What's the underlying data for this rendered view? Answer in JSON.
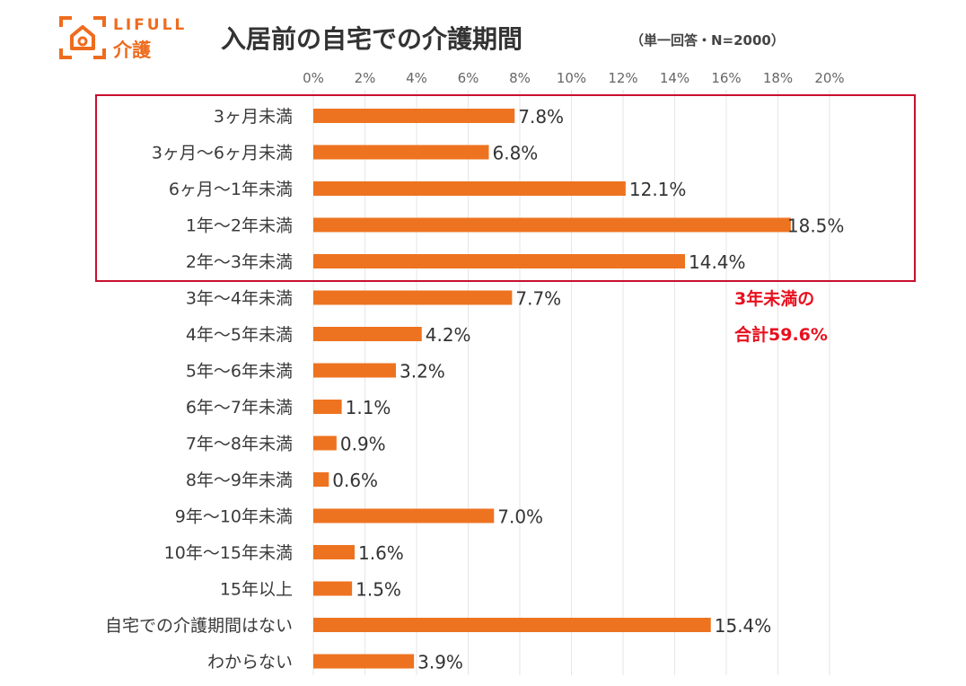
{
  "logo": {
    "top": "LIFULL",
    "bottom": "介護"
  },
  "title": "入居前の自宅での介護期間",
  "note": "（単一回答・N=2000）",
  "annotation": {
    "line1": "3年未満の",
    "line2": "合計59.6%"
  },
  "colors": {
    "bar": "#ee7320",
    "highlight_box": "#c8102e",
    "annotation": "#e8101e",
    "grid": "#e6e6e6"
  },
  "chart_data": {
    "type": "bar",
    "orientation": "horizontal",
    "title": "入居前の自宅での介護期間",
    "subtitle": "（単一回答・N=2000）",
    "xlim": [
      0,
      20
    ],
    "x_ticks": [
      "0%",
      "2%",
      "4%",
      "6%",
      "8%",
      "10%",
      "12%",
      "14%",
      "16%",
      "18%",
      "20%"
    ],
    "x_tick_values": [
      0,
      2,
      4,
      6,
      8,
      10,
      12,
      14,
      16,
      18,
      20
    ],
    "grid": true,
    "unit": "%",
    "categories": [
      "3ヶ月未満",
      "3ヶ月〜6ヶ月未満",
      "6ヶ月〜1年未満",
      "1年〜2年未満",
      "2年〜3年未満",
      "3年〜4年未満",
      "4年〜5年未満",
      "5年〜6年未満",
      "6年〜7年未満",
      "7年〜8年未満",
      "8年〜9年未満",
      "9年〜10年未満",
      "10年〜15年未満",
      "15年以上",
      "自宅での介護期間はない",
      "わからない"
    ],
    "values": [
      7.8,
      6.8,
      12.1,
      18.5,
      14.4,
      7.7,
      4.2,
      3.2,
      1.1,
      0.9,
      0.6,
      7.0,
      1.6,
      1.5,
      15.4,
      3.9
    ],
    "value_labels": [
      "7.8%",
      "6.8%",
      "12.1%",
      "18.5%",
      "14.4%",
      "7.7%",
      "4.2%",
      "3.2%",
      "1.1%",
      "0.9%",
      "0.6%",
      "7.0%",
      "1.6%",
      "1.5%",
      "15.4%",
      "3.9%"
    ],
    "highlighted_categories": [
      "3ヶ月未満",
      "3ヶ月〜6ヶ月未満",
      "6ヶ月〜1年未満",
      "1年〜2年未満",
      "2年〜3年未満"
    ]
  }
}
